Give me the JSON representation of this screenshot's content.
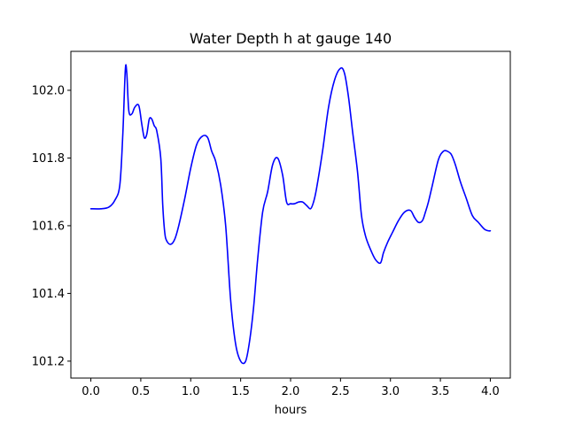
{
  "chart_data": {
    "type": "line",
    "title": "Water Depth h at gauge 140",
    "xlabel": "hours",
    "ylabel": "",
    "xlim": [
      -0.2,
      4.2
    ],
    "ylim": [
      101.15,
      102.115
    ],
    "grid": false,
    "x_ticks": [
      0.0,
      0.5,
      1.0,
      1.5,
      2.0,
      2.5,
      3.0,
      3.5,
      4.0
    ],
    "x_tick_labels": [
      "0.0",
      "0.5",
      "1.0",
      "1.5",
      "2.0",
      "2.5",
      "3.0",
      "3.5",
      "4.0"
    ],
    "y_ticks": [
      101.2,
      101.4,
      101.6,
      101.8,
      102.0
    ],
    "y_tick_labels": [
      "101.2",
      "101.4",
      "101.6",
      "101.8",
      "102.0"
    ],
    "series": [
      {
        "color": "#0000ff",
        "x": [
          0.0,
          0.1,
          0.18,
          0.24,
          0.29,
          0.32,
          0.345,
          0.36,
          0.38,
          0.41,
          0.44,
          0.48,
          0.51,
          0.535,
          0.56,
          0.585,
          0.61,
          0.635,
          0.66,
          0.7,
          0.72,
          0.74,
          0.76,
          0.8,
          0.84,
          0.88,
          0.94,
          1.0,
          1.06,
          1.12,
          1.17,
          1.21,
          1.25,
          1.3,
          1.35,
          1.4,
          1.45,
          1.5,
          1.55,
          1.59,
          1.63,
          1.67,
          1.72,
          1.77,
          1.82,
          1.87,
          1.92,
          1.96,
          2.0,
          2.04,
          2.08,
          2.12,
          2.16,
          2.2,
          2.23,
          2.26,
          2.32,
          2.38,
          2.44,
          2.5,
          2.54,
          2.58,
          2.62,
          2.67,
          2.71,
          2.75,
          2.8,
          2.85,
          2.9,
          2.93,
          2.97,
          3.02,
          3.08,
          3.14,
          3.2,
          3.24,
          3.28,
          3.32,
          3.35,
          3.38,
          3.42,
          3.48,
          3.53,
          3.57,
          3.61,
          3.65,
          3.7,
          3.76,
          3.82,
          3.88,
          3.94,
          3.98,
          4.0
        ],
        "values": [
          101.65,
          101.65,
          101.655,
          101.675,
          101.72,
          101.87,
          102.06,
          102.05,
          101.94,
          101.93,
          101.95,
          101.955,
          101.9,
          101.86,
          101.87,
          101.915,
          101.915,
          101.895,
          101.88,
          101.8,
          101.66,
          101.58,
          101.555,
          101.545,
          101.56,
          101.6,
          101.68,
          101.77,
          101.84,
          101.865,
          101.86,
          101.82,
          101.79,
          101.72,
          101.6,
          101.38,
          101.25,
          101.2,
          101.2,
          101.26,
          101.36,
          101.5,
          101.64,
          101.7,
          101.78,
          101.8,
          101.75,
          101.67,
          101.665,
          101.665,
          101.67,
          101.67,
          101.66,
          101.65,
          101.67,
          101.71,
          101.82,
          101.95,
          102.03,
          102.065,
          102.05,
          101.98,
          101.88,
          101.76,
          101.63,
          101.57,
          101.53,
          101.5,
          101.49,
          101.52,
          101.55,
          101.58,
          101.615,
          101.64,
          101.645,
          101.625,
          101.61,
          101.615,
          101.64,
          101.67,
          101.72,
          101.795,
          101.82,
          101.82,
          101.81,
          101.78,
          101.73,
          101.68,
          101.63,
          101.61,
          101.59,
          101.585,
          101.585
        ]
      }
    ]
  }
}
